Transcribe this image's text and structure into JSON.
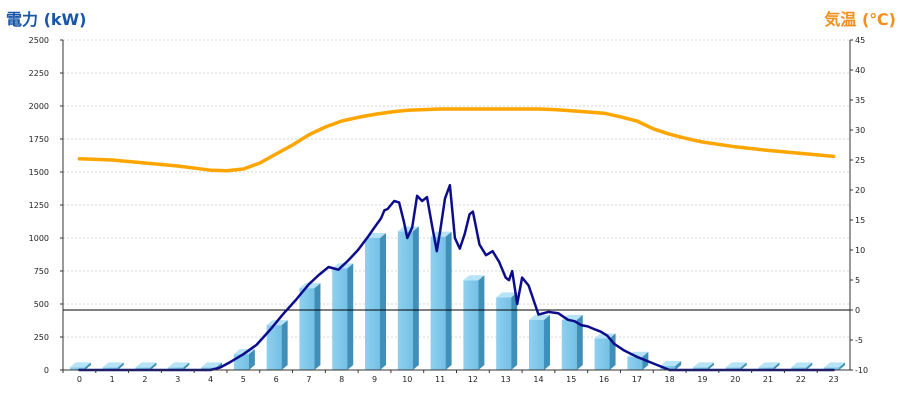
{
  "chart_data": {
    "type": "bar",
    "left_axis_title": "電力 (kW)",
    "right_axis_title": "気温 (℃)",
    "y_left": {
      "min": 0,
      "max": 2500,
      "ticks": [
        0,
        250,
        500,
        750,
        1000,
        1250,
        1500,
        1750,
        2000,
        2250,
        2500
      ]
    },
    "y_right": {
      "min": -10,
      "max": 45,
      "ticks": [
        -10,
        -5,
        0,
        5,
        10,
        15,
        20,
        25,
        30,
        35,
        40,
        45
      ]
    },
    "categories": [
      "0",
      "1",
      "2",
      "3",
      "4",
      "5",
      "6",
      "7",
      "8",
      "9",
      "10",
      "11",
      "12",
      "13",
      "14",
      "15",
      "16",
      "17",
      "18",
      "19",
      "20",
      "21",
      "22",
      "23"
    ],
    "series": [
      {
        "kind": "bar",
        "color": "#87ceeb",
        "values": [
          20,
          20,
          20,
          20,
          20,
          120,
          340,
          620,
          770,
          1000,
          1050,
          1010,
          680,
          550,
          380,
          380,
          240,
          100,
          30,
          20,
          20,
          20,
          20,
          20
        ]
      },
      {
        "kind": "line",
        "axis": "left",
        "color": "#0d0d8c",
        "x": [
          0,
          0.5,
          1,
          1.5,
          2,
          2.5,
          3,
          3.5,
          4,
          4.3,
          4.6,
          5,
          5.4,
          5.8,
          6.2,
          6.6,
          7,
          7.3,
          7.6,
          7.9,
          8.2,
          8.5,
          8.8,
          9,
          9.2,
          9.3,
          9.4,
          9.6,
          9.75,
          9.9,
          10,
          10.15,
          10.3,
          10.45,
          10.6,
          10.75,
          10.9,
          11,
          11.15,
          11.3,
          11.45,
          11.6,
          11.75,
          11.9,
          12,
          12.2,
          12.4,
          12.6,
          12.8,
          13,
          13.1,
          13.2,
          13.35,
          13.5,
          13.7,
          14,
          14.3,
          14.6,
          14.9,
          15.1,
          15.3,
          15.5,
          15.7,
          15.9,
          16.1,
          16.3,
          16.6,
          17,
          17.4,
          17.8,
          18,
          18.5,
          19,
          20,
          21,
          22,
          23
        ],
        "values": [
          0,
          0,
          0,
          0,
          0,
          0,
          0,
          0,
          0,
          20,
          60,
          120,
          190,
          300,
          420,
          530,
          650,
          720,
          780,
          760,
          830,
          910,
          1010,
          1080,
          1150,
          1210,
          1220,
          1280,
          1270,
          1120,
          1000,
          1080,
          1320,
          1280,
          1310,
          1100,
          900,
          1050,
          1300,
          1400,
          1000,
          920,
          1030,
          1180,
          1200,
          950,
          870,
          900,
          820,
          700,
          680,
          750,
          500,
          700,
          640,
          420,
          440,
          430,
          380,
          370,
          340,
          330,
          310,
          290,
          260,
          200,
          150,
          100,
          60,
          20,
          0,
          0,
          0,
          0,
          0,
          0,
          0
        ]
      },
      {
        "kind": "line",
        "axis": "right",
        "color": "#ffa500",
        "x": [
          0,
          1,
          2,
          3,
          4,
          4.5,
          5,
          5.5,
          6,
          6.5,
          7,
          7.5,
          8,
          8.5,
          9,
          9.5,
          10,
          10.5,
          11,
          11.5,
          12,
          12.5,
          13,
          13.5,
          14,
          14.5,
          15,
          15.5,
          16,
          16.5,
          17,
          17.5,
          18,
          18.5,
          19,
          20,
          21,
          22,
          23
        ],
        "values": [
          25.2,
          25,
          24.5,
          24,
          23.3,
          23.2,
          23.5,
          24.5,
          26,
          27.5,
          29.2,
          30.5,
          31.5,
          32.1,
          32.6,
          33,
          33.3,
          33.4,
          33.5,
          33.5,
          33.5,
          33.5,
          33.5,
          33.5,
          33.5,
          33.4,
          33.2,
          33,
          32.8,
          32.2,
          31.5,
          30.2,
          29.3,
          28.6,
          28,
          27.2,
          26.6,
          26.1,
          25.6
        ]
      }
    ],
    "reference_line": {
      "axis": "right",
      "value": 0,
      "color": "#000000"
    },
    "grid": true
  }
}
